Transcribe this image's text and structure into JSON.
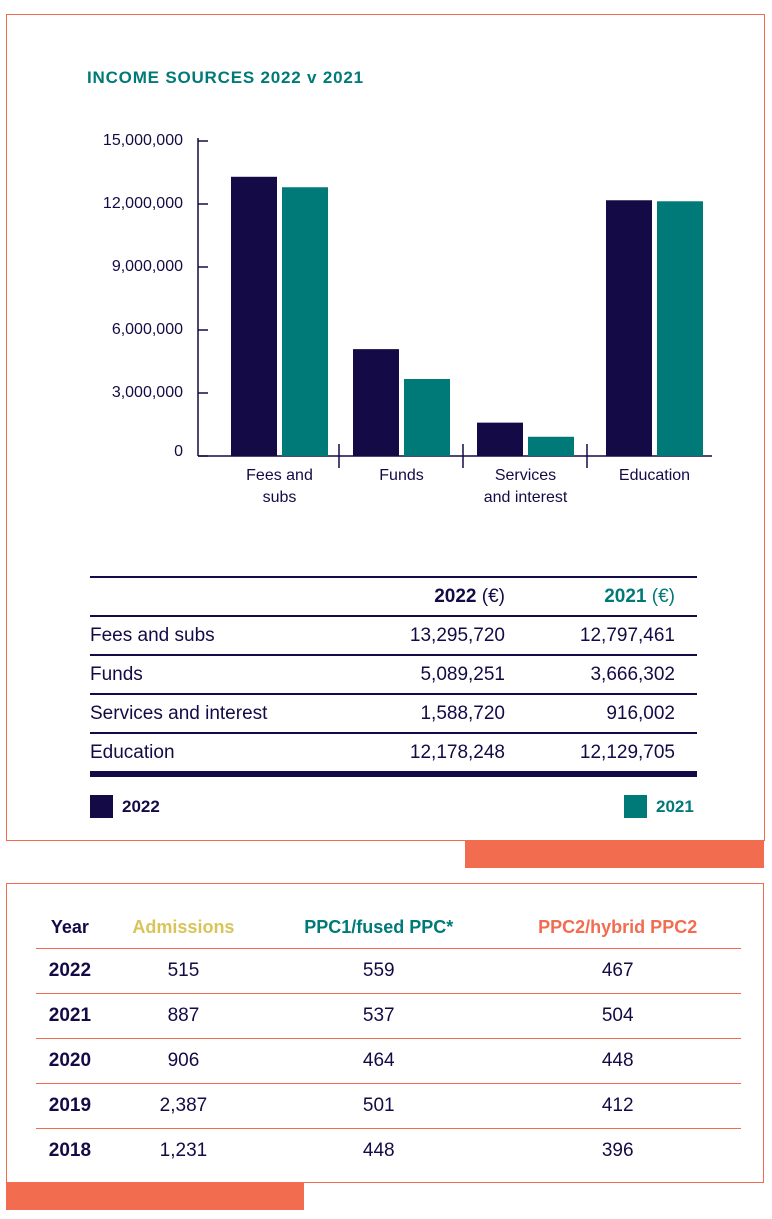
{
  "colors": {
    "series_2022": "#140a46",
    "series_2021": "#007a78",
    "accent": "#f26c50",
    "admissions": "#d9c45a"
  },
  "chart_data": {
    "type": "bar",
    "title": "INCOME SOURCES 2022 v 2021",
    "categories": [
      "Fees and\nsubs",
      "Funds",
      "Services\nand interest",
      "Education"
    ],
    "series": [
      {
        "name": "2022",
        "values": [
          13295720,
          5089251,
          1588720,
          12178248
        ]
      },
      {
        "name": "2021",
        "values": [
          12797461,
          3666302,
          916002,
          12129705
        ]
      }
    ],
    "ylim": [
      0,
      15000000
    ],
    "yticks": [
      "0",
      "3,000,000",
      "6,000,000",
      "9,000,000",
      "12,000,000",
      "15,000,000"
    ],
    "ytick_values": [
      0,
      3000000,
      6000000,
      9000000,
      12000000,
      15000000
    ],
    "grid": false,
    "legend_placement": "bottom"
  },
  "income_table": {
    "headers": [
      {
        "year": "2022",
        "unit": " (€)"
      },
      {
        "year": "2021",
        "unit": " (€)"
      }
    ],
    "rows": [
      {
        "label": "Fees and subs",
        "v2022": "13,295,720",
        "v2021": "12,797,461"
      },
      {
        "label": "Funds",
        "v2022": "5,089,251",
        "v2021": "3,666,302"
      },
      {
        "label": "Services and interest",
        "v2022": "1,588,720",
        "v2021": "916,002"
      },
      {
        "label": "Education",
        "v2022": "12,178,248",
        "v2021": "12,129,705"
      }
    ]
  },
  "legend": {
    "a": "2022",
    "b": "2021"
  },
  "stats_table": {
    "headers": [
      "Year",
      "Admissions",
      "PPC1/fused PPC*",
      "PPC2/hybrid PPC2"
    ],
    "rows": [
      [
        "2022",
        "515",
        "559",
        "467"
      ],
      [
        "2021",
        "887",
        "537",
        "504"
      ],
      [
        "2020",
        "906",
        "464",
        "448"
      ],
      [
        "2019",
        "2,387",
        "501",
        "412"
      ],
      [
        "2018",
        "1,231",
        "448",
        "396"
      ]
    ]
  }
}
